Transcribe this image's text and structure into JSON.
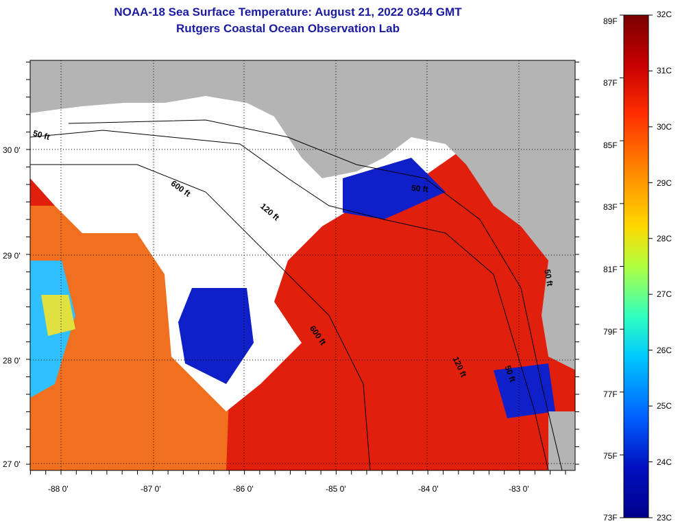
{
  "title_line1": "NOAA-18 Sea Surface Temperature:  August 21, 2022 0344 GMT",
  "title_line2": "Rutgers Coastal Ocean Observation Lab",
  "lat_labels": [
    "30 0'",
    "29 0'",
    "28 0'",
    "27 0'"
  ],
  "lon_labels": [
    "-88 0'",
    "-87 0'",
    "-86 0'",
    "-85 0'",
    "-84 0'",
    "-83 0'"
  ],
  "contour_labels": {
    "c50a": "50 ft",
    "c600a": "600 ft",
    "c120a": "120 ft",
    "c50b": "50 ft",
    "c50c": "50 ft",
    "c600b": "600 ft",
    "c120b": "120 ft",
    "c50d": "50 ft"
  },
  "colorbar": {
    "fahrenheit": [
      "89F",
      "87F",
      "85F",
      "83F",
      "81F",
      "79F",
      "77F",
      "75F",
      "73F"
    ],
    "celsius": [
      "32C",
      "31C",
      "30C",
      "29C",
      "28C",
      "27C",
      "26C",
      "25C",
      "24C",
      "23C"
    ],
    "colors": [
      "#7a0000",
      "#c80000",
      "#ff3000",
      "#ff8000",
      "#ffd800",
      "#b0ff40",
      "#30ffc0",
      "#00c8ff",
      "#0060ff",
      "#0010c0",
      "#00008a"
    ]
  },
  "palette": {
    "land": "#b4b4b4",
    "cloud": "#ffffff",
    "warm_red": "#e0200c",
    "orange": "#f07020",
    "blue": "#1020c8",
    "cyan": "#30c0ff",
    "yellow": "#e0e040"
  }
}
